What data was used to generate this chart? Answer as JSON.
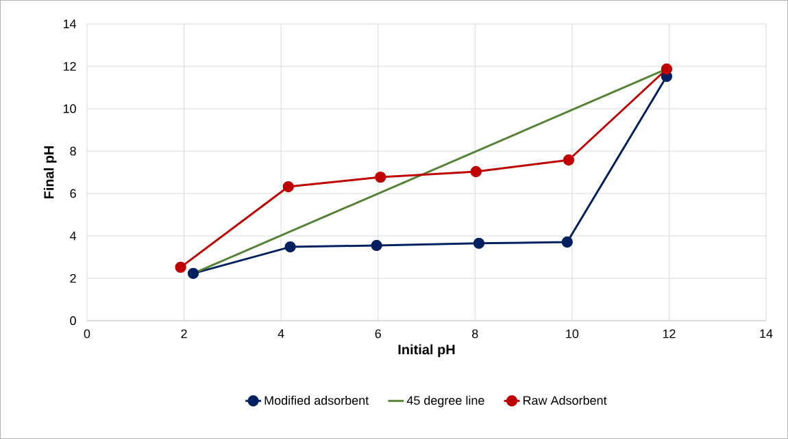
{
  "chart_data": {
    "type": "line",
    "xlabel": "Initial pH",
    "ylabel": "Final pH",
    "xlim": [
      0,
      14
    ],
    "ylim": [
      0,
      14
    ],
    "xticks": [
      0,
      2,
      4,
      6,
      8,
      10,
      12,
      14
    ],
    "yticks": [
      0,
      2,
      4,
      6,
      8,
      10,
      12,
      14
    ],
    "grid": true,
    "legend": "bottom",
    "line_style": "solid",
    "series": [
      {
        "name": "Modified adsorbent",
        "color": "#002060",
        "marker": "circle",
        "x": [
          2.19,
          4.19,
          5.97,
          8.08,
          9.9,
          11.95
        ],
        "values": [
          2.23,
          3.48,
          3.55,
          3.65,
          3.71,
          11.52
        ]
      },
      {
        "name": "45 degree line",
        "color": "#548235",
        "marker": "none",
        "x": [
          2.19,
          11.95
        ],
        "values": [
          2.23,
          11.87
        ]
      },
      {
        "name": "Raw Adsorbent",
        "color": "#c00000",
        "marker": "circle",
        "x": [
          1.93,
          4.15,
          6.05,
          8.02,
          9.93,
          11.95
        ],
        "values": [
          2.52,
          6.32,
          6.77,
          7.03,
          7.58,
          11.87
        ]
      }
    ]
  }
}
